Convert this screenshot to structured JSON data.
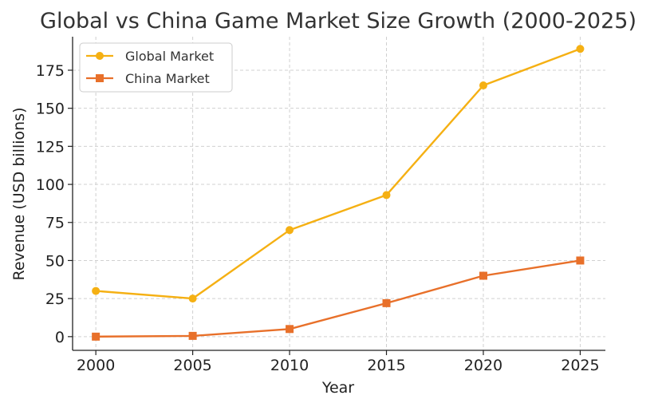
{
  "chart_data": {
    "type": "line",
    "title": "Global vs China Game Market Size Growth (2000-2025)",
    "xlabel": "Year",
    "ylabel": "Revenue (USD billions)",
    "x": [
      2000,
      2005,
      2010,
      2015,
      2020,
      2025
    ],
    "xticks": [
      2000,
      2005,
      2010,
      2015,
      2020,
      2025
    ],
    "yticks": [
      0,
      25,
      50,
      75,
      100,
      125,
      150,
      175
    ],
    "xlim": [
      1998.8,
      2026.3
    ],
    "ylim": [
      -9,
      197
    ],
    "grid": true,
    "legend_position": "top-left",
    "series": [
      {
        "name": "Global Market",
        "values": [
          30,
          25,
          70,
          93,
          165,
          189
        ],
        "color": "#F5B013",
        "marker": "circle"
      },
      {
        "name": "China Market",
        "values": [
          0,
          0.5,
          5,
          22,
          40,
          50
        ],
        "color": "#E8702A",
        "marker": "square"
      }
    ]
  }
}
